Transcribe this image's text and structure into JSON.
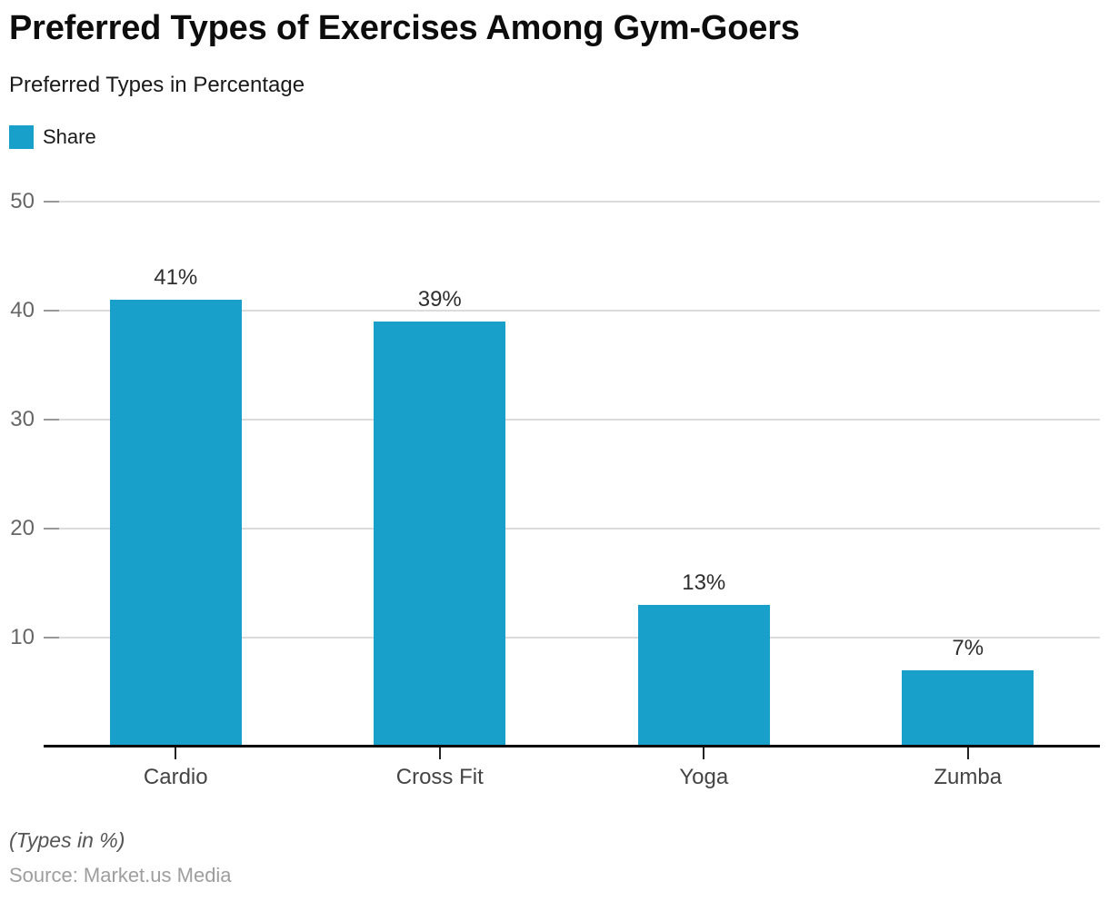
{
  "header": {
    "title": "Preferred Types of Exercises Among Gym-Goers",
    "subtitle": "Preferred Types in Percentage"
  },
  "legend": {
    "label": "Share"
  },
  "chart_data": {
    "type": "bar",
    "title": "Preferred Types of Exercises Among Gym-Goers",
    "subtitle": "Preferred Types in Percentage",
    "categories": [
      "Cardio",
      "Cross Fit",
      "Yoga",
      "Zumba"
    ],
    "series": [
      {
        "name": "Share",
        "values": [
          41,
          39,
          13,
          7
        ],
        "color": "#18A0CB"
      }
    ],
    "value_labels": [
      "41%",
      "39%",
      "13%",
      "7%"
    ],
    "xlabel": "",
    "ylabel": "",
    "ylim": [
      0,
      50
    ],
    "yticks": [
      10,
      20,
      30,
      40,
      50
    ],
    "grid": "horizontal",
    "legend_position": "top-left"
  },
  "colors": {
    "bar": "#18A0CB",
    "gridline": "#dcdcdc",
    "tick_stub": "#999999",
    "axis": "#0b0b0b",
    "ytick_label": "#666666",
    "category_label": "#444444",
    "value_label": "#2e2e2e"
  },
  "footer": {
    "note": "(Types in %)",
    "source": "Source: Market.us Media"
  }
}
